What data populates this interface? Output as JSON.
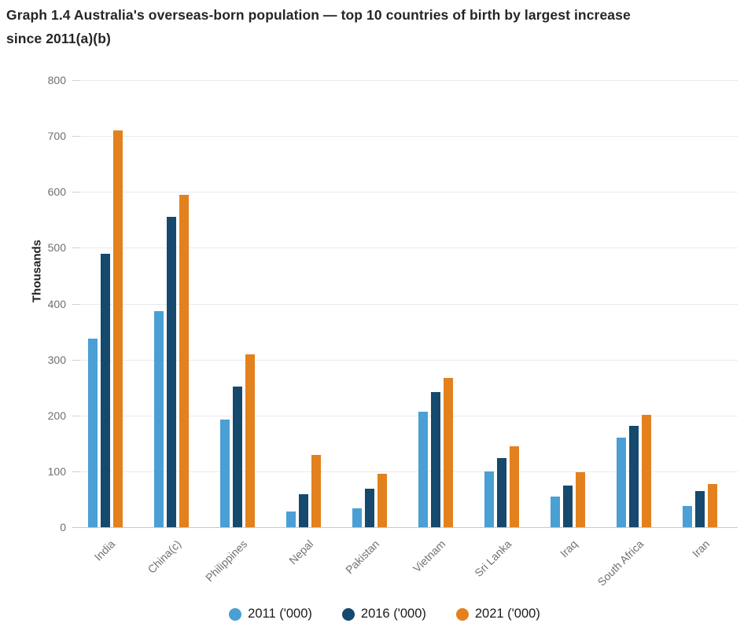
{
  "title": {
    "line1": "Graph 1.4 Australia's overseas-born population — top 10 countries of birth by largest increase",
    "line2": "since 2011(a)(b)"
  },
  "chart_data": {
    "type": "bar",
    "title": "Graph 1.4 Australia's overseas-born population — top 10 countries of birth by largest increase since 2011(a)(b)",
    "xlabel": "",
    "ylabel": "Thousands",
    "ylim": [
      0,
      800
    ],
    "ytick_interval": 100,
    "yticks": [
      0,
      100,
      200,
      300,
      400,
      500,
      600,
      700,
      800
    ],
    "grid": true,
    "legend_position": "bottom",
    "categories": [
      "India",
      "China(c)",
      "Philippines",
      "Nepal",
      "Pakistan",
      "Vietnam",
      "Sri Lanka",
      "Iraq",
      "South Africa",
      "Iran"
    ],
    "series": [
      {
        "name": "2011 ('000)",
        "color": "#4a9fd4",
        "values": [
          337,
          387,
          193,
          28,
          34,
          207,
          100,
          55,
          160,
          38
        ]
      },
      {
        "name": "2016 ('000)",
        "color": "#15496d",
        "values": [
          489,
          556,
          252,
          59,
          69,
          242,
          124,
          74,
          181,
          65
        ]
      },
      {
        "name": "2021 ('000)",
        "color": "#e2811e",
        "values": [
          710,
          595,
          310,
          129,
          95,
          267,
          145,
          99,
          201,
          78
        ]
      }
    ]
  },
  "styles": {
    "grid_color": "#e9ebec",
    "axis_line_color": "#c5cacd",
    "tick_label_color": "#6b7075",
    "title_color": "#252525"
  }
}
